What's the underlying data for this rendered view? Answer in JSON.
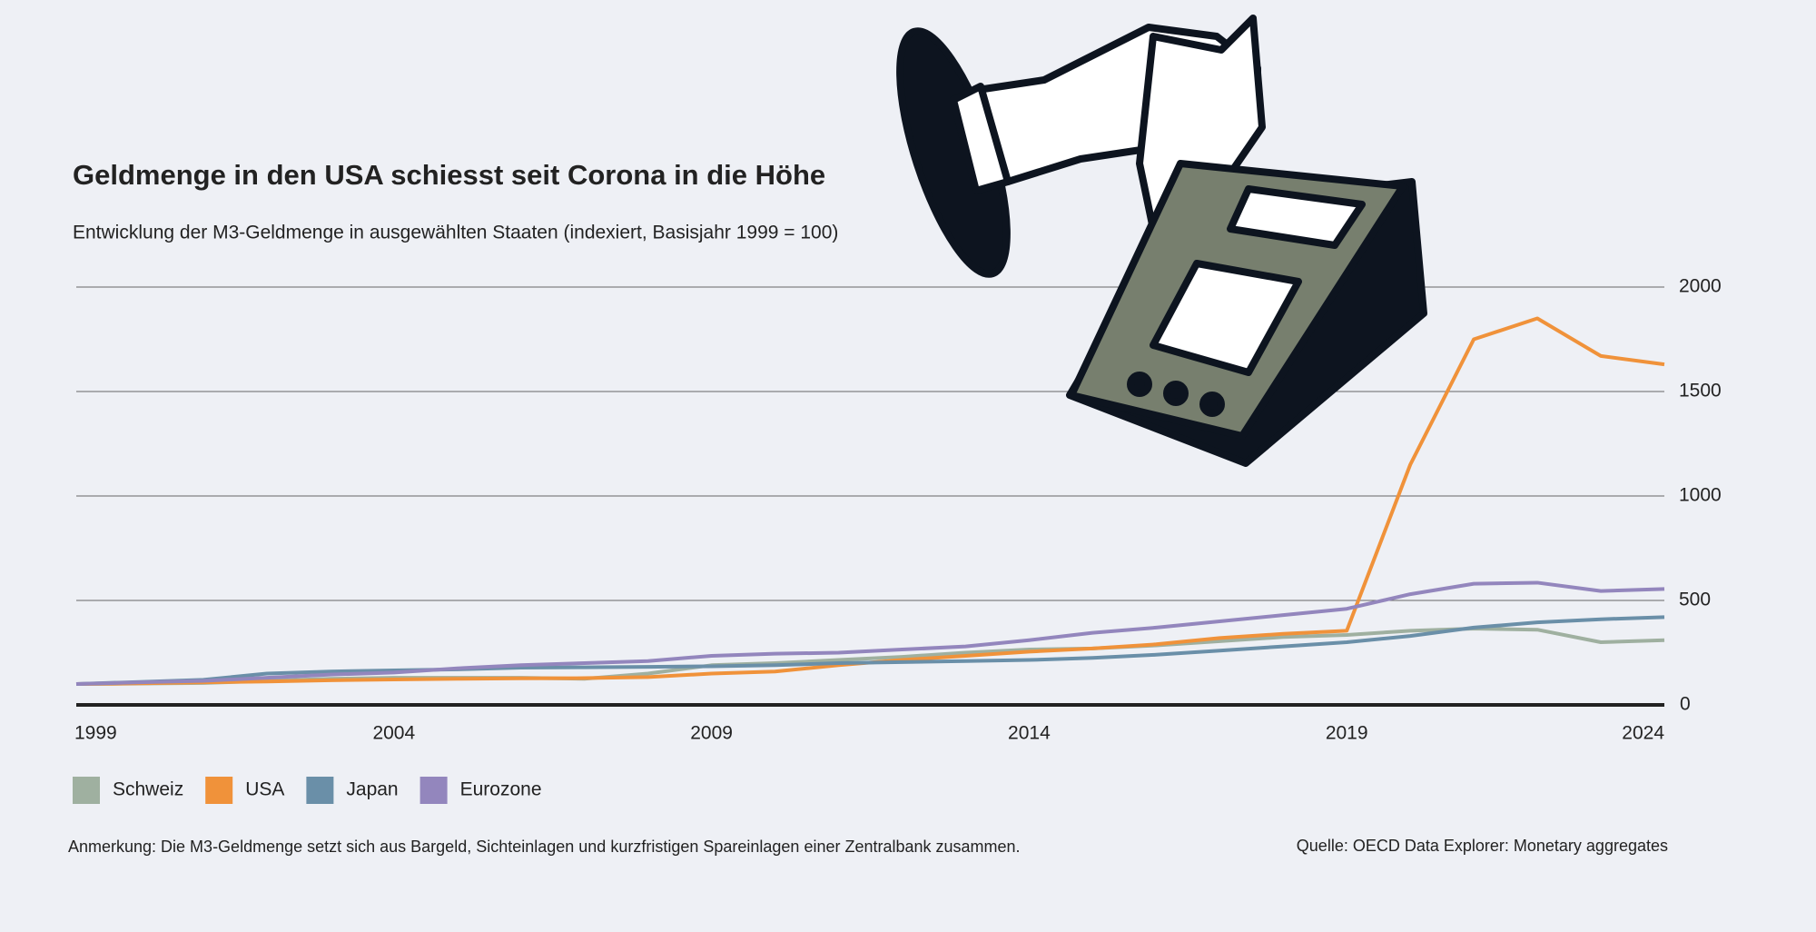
{
  "chart_data": {
    "type": "line",
    "title": "Geldmenge in den USA schiesst seit Corona in die Höhe",
    "subtitle": "Entwicklung der M3-Geldmenge in ausgewählten Staaten (indexiert, Basisjahr 1999 = 100)",
    "x": [
      1999,
      2000,
      2001,
      2002,
      2003,
      2004,
      2005,
      2006,
      2007,
      2008,
      2009,
      2010,
      2011,
      2012,
      2013,
      2014,
      2015,
      2016,
      2017,
      2018,
      2019,
      2020,
      2021,
      2022,
      2023,
      2024
    ],
    "series": [
      {
        "name": "Schweiz",
        "color": "#9fb0a0",
        "values": [
          100,
          102,
          105,
          115,
          125,
          130,
          130,
          130,
          125,
          150,
          190,
          200,
          215,
          230,
          250,
          265,
          270,
          285,
          305,
          325,
          335,
          355,
          365,
          360,
          300,
          310
        ]
      },
      {
        "name": "USA",
        "color": "#f0923a",
        "values": [
          100,
          103,
          108,
          112,
          118,
          122,
          125,
          127,
          128,
          133,
          150,
          160,
          190,
          215,
          235,
          255,
          270,
          290,
          320,
          340,
          355,
          1150,
          1750,
          1850,
          1670,
          1630
        ]
      },
      {
        "name": "Japan",
        "color": "#6a8fa8",
        "values": [
          100,
          110,
          120,
          150,
          160,
          165,
          170,
          178,
          180,
          182,
          185,
          190,
          200,
          205,
          210,
          215,
          225,
          240,
          260,
          280,
          300,
          330,
          370,
          395,
          410,
          420
        ]
      },
      {
        "name": "Eurozone",
        "color": "#9386bd",
        "values": [
          100,
          108,
          115,
          130,
          145,
          155,
          175,
          190,
          200,
          210,
          235,
          245,
          250,
          265,
          280,
          310,
          345,
          370,
          400,
          430,
          460,
          530,
          580,
          585,
          545,
          555
        ]
      }
    ],
    "xlim": [
      1999,
      2024
    ],
    "xticks": [
      1999,
      2004,
      2009,
      2014,
      2019,
      2024
    ],
    "ylim": [
      0,
      2000
    ],
    "yticks": [
      0,
      500,
      1000,
      1500,
      2000
    ],
    "grid": true,
    "note": "Anmerkung: Die M3-Geldmenge setzt sich aus Bargeld, Sichteinlagen und kurzfristigen Spareinlagen einer Zentralbank zusammen.",
    "source": "Quelle: OECD Data Explorer: Monetary aggregates"
  }
}
